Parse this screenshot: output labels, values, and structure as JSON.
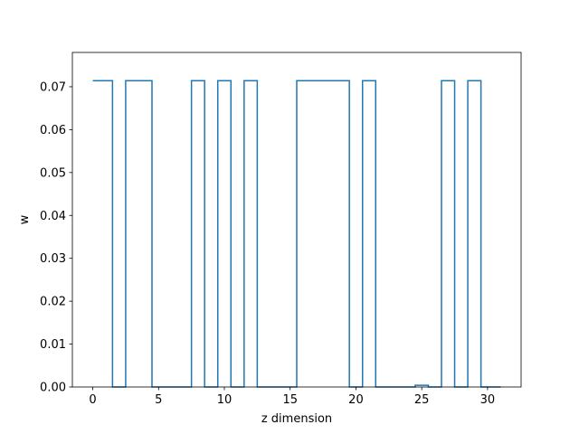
{
  "chart_data": {
    "type": "line",
    "drawstyle": "steps-mid",
    "xlabel": "z dimension",
    "ylabel": "w",
    "xlim": [
      -1.55,
      32.55
    ],
    "ylim": [
      0.0,
      0.078
    ],
    "grid": false,
    "x_ticks": [
      0,
      5,
      10,
      15,
      20,
      25,
      30
    ],
    "y_ticks": [
      0.0,
      0.01,
      0.02,
      0.03,
      0.04,
      0.05,
      0.06,
      0.07
    ],
    "x_tick_labels": [
      "0",
      "5",
      "10",
      "15",
      "20",
      "25",
      "30"
    ],
    "y_tick_labels": [
      "0.00",
      "0.01",
      "0.02",
      "0.03",
      "0.04",
      "0.05",
      "0.06",
      "0.07"
    ],
    "series": [
      {
        "color": "#1f77b4",
        "x": [
          0,
          1,
          2,
          3,
          4,
          5,
          6,
          7,
          8,
          9,
          10,
          11,
          12,
          13,
          14,
          15,
          16,
          17,
          18,
          19,
          20,
          21,
          22,
          23,
          24,
          25,
          26,
          27,
          28,
          29,
          30,
          31
        ],
        "y": [
          0.0714,
          0.0714,
          0.0,
          0.0714,
          0.0714,
          0.0,
          0.0,
          0.0,
          0.0714,
          0.0,
          0.0714,
          0.0,
          0.0714,
          0.0,
          0.0,
          0.0,
          0.0714,
          0.0714,
          0.0714,
          0.0714,
          0.0,
          0.0714,
          0.0,
          0.0,
          0.0,
          0.0004,
          0.0,
          0.0714,
          0.0,
          0.0714,
          0.0,
          0.0
        ]
      }
    ]
  }
}
